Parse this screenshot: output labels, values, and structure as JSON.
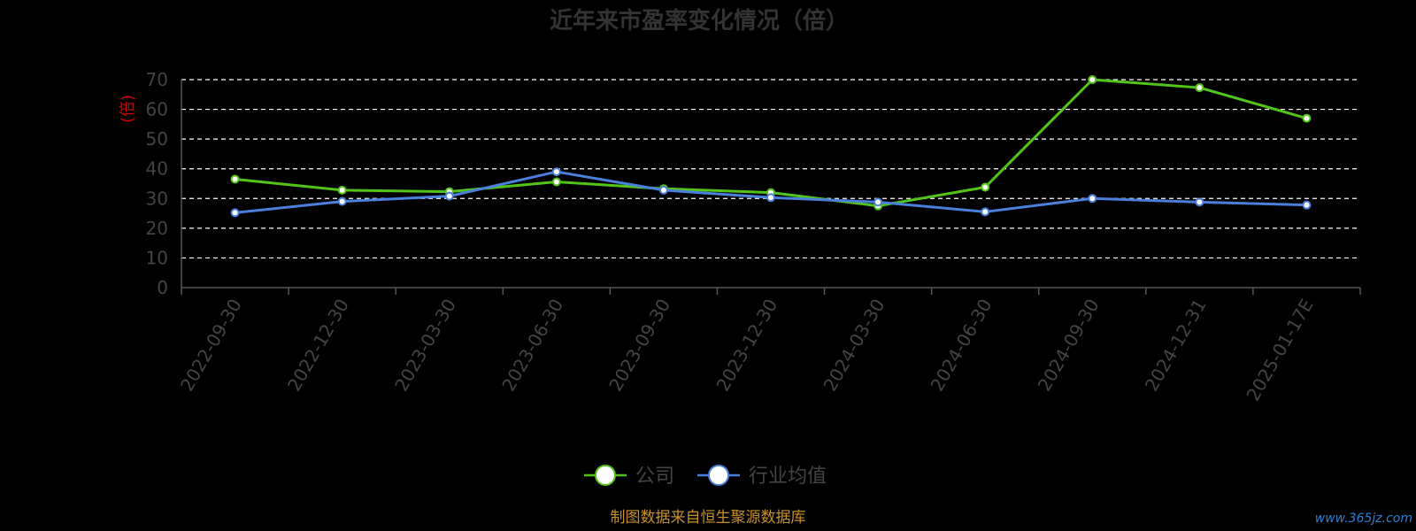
{
  "chart_data": {
    "type": "line",
    "title": "近年来市盈率变化情况（倍）",
    "ylabel": "(倍)",
    "xlabel": "",
    "ylim": [
      0,
      70
    ],
    "yticks": [
      0,
      10,
      20,
      30,
      40,
      50,
      60,
      70
    ],
    "grid": true,
    "legend_position": "bottom",
    "categories": [
      "2022-09-30",
      "2022-12-30",
      "2023-03-30",
      "2023-06-30",
      "2023-09-30",
      "2023-12-30",
      "2024-03-30",
      "2024-06-30",
      "2024-09-30",
      "2024-12-31",
      "2025-01-17E"
    ],
    "series": [
      {
        "name": "公司",
        "color": "#52c41a",
        "values": [
          36.5,
          32.8,
          32.3,
          35.6,
          33.3,
          32.0,
          27.5,
          33.8,
          70.0,
          67.3,
          57.0
        ]
      },
      {
        "name": "行业均值",
        "color": "#4a7fdc",
        "values": [
          25.2,
          29.0,
          30.8,
          39.0,
          32.8,
          30.3,
          28.8,
          25.5,
          30.0,
          28.8,
          27.8
        ]
      }
    ]
  },
  "footer": {
    "source": "制图数据来自恒生聚源数据库",
    "watermark": "www.365jz.com"
  }
}
